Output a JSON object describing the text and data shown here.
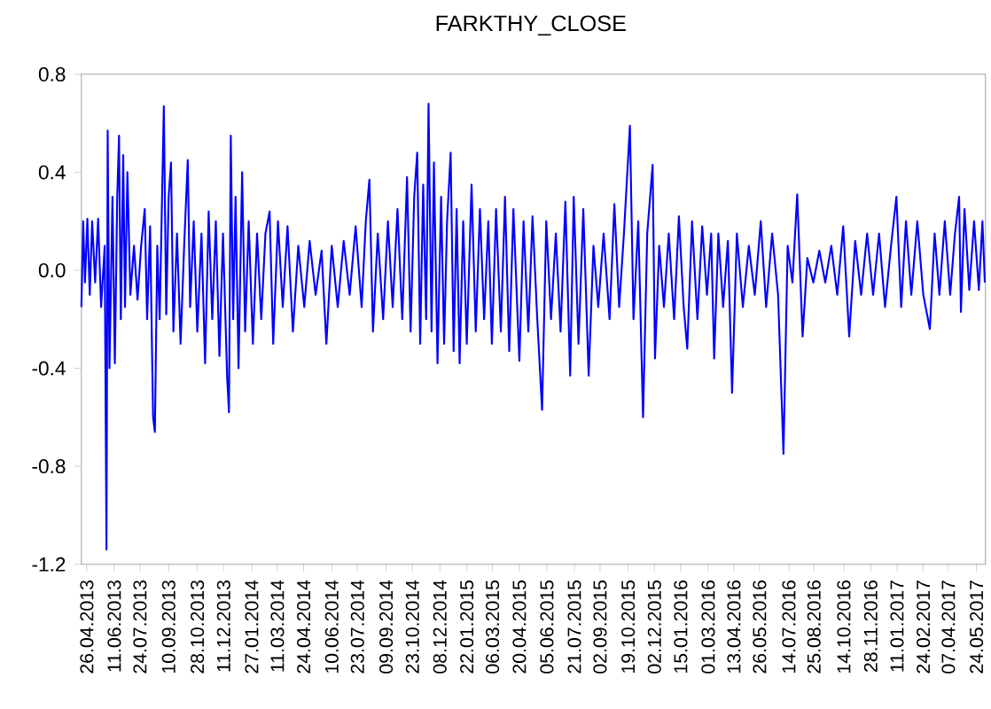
{
  "chart_data": {
    "type": "line",
    "title": "FARKTHY_CLOSE",
    "color": "#0000ff",
    "marker": "none",
    "line_style": "solid",
    "grid": false,
    "xlim": [
      "2013-04-17",
      "2017-06-08"
    ],
    "ylim": [
      -1.2,
      0.8
    ],
    "yticks": [
      -1.2,
      -0.8,
      -0.4,
      {
        "value": 0,
        "label": "0.0"
      },
      0.4,
      0.8
    ],
    "xticks": [
      {
        "value": "2013-04-26",
        "label": "26.04.2013"
      },
      {
        "value": "2013-06-11",
        "label": "11.06.2013"
      },
      {
        "value": "2013-07-24",
        "label": "24.07.2013"
      },
      {
        "value": "2013-09-10",
        "label": "10.09.2013"
      },
      {
        "value": "2013-10-28",
        "label": "28.10.2013"
      },
      {
        "value": "2013-12-11",
        "label": "11.12.2013"
      },
      {
        "value": "2014-01-27",
        "label": "27.01.2014"
      },
      {
        "value": "2014-03-11",
        "label": "11.03.2014"
      },
      {
        "value": "2014-04-24",
        "label": "24.04.2014"
      },
      {
        "value": "2014-06-10",
        "label": "10.06.2014"
      },
      {
        "value": "2014-07-23",
        "label": "23.07.2014"
      },
      {
        "value": "2014-09-09",
        "label": "09.09.2014"
      },
      {
        "value": "2014-10-23",
        "label": "23.10.2014"
      },
      {
        "value": "2014-12-08",
        "label": "08.12.2014"
      },
      {
        "value": "2015-01-22",
        "label": "22.01.2015"
      },
      {
        "value": "2015-03-06",
        "label": "06.03.2015"
      },
      {
        "value": "2015-04-20",
        "label": "20.04.2015"
      },
      {
        "value": "2015-06-05",
        "label": "05.06.2015"
      },
      {
        "value": "2015-07-21",
        "label": "21.07.2015"
      },
      {
        "value": "2015-09-02",
        "label": "02.09.2015"
      },
      {
        "value": "2015-10-19",
        "label": "19.10.2015"
      },
      {
        "value": "2015-12-02",
        "label": "02.12.2015"
      },
      {
        "value": "2016-01-15",
        "label": "15.01.2016"
      },
      {
        "value": "2016-03-01",
        "label": "01.03.2016"
      },
      {
        "value": "2016-04-13",
        "label": "13.04.2016"
      },
      {
        "value": "2016-05-26",
        "label": "26.05.2016"
      },
      {
        "value": "2016-07-14",
        "label": "14.07.2016"
      },
      {
        "value": "2016-08-25",
        "label": "25.08.2016"
      },
      {
        "value": "2016-10-14",
        "label": "14.10.2016"
      },
      {
        "value": "2016-11-28",
        "label": "28.11.2016"
      },
      {
        "value": "2017-01-11",
        "label": "11.01.2017"
      },
      {
        "value": "2017-02-24",
        "label": "24.02.2017"
      },
      {
        "value": "2017-04-07",
        "label": "07.04.2017"
      },
      {
        "value": "2017-05-24",
        "label": "24.05.2017"
      }
    ],
    "x": [
      "2013-04-17",
      "2013-04-20",
      "2013-04-23",
      "2013-04-27",
      "2013-05-01",
      "2013-05-05",
      "2013-05-10",
      "2013-05-15",
      "2013-05-20",
      "2013-05-26",
      "2013-05-29",
      "2013-05-31",
      "2013-06-03",
      "2013-06-08",
      "2013-06-12",
      "2013-06-16",
      "2013-06-19",
      "2013-06-22",
      "2013-06-26",
      "2013-06-29",
      "2013-07-03",
      "2013-07-08",
      "2013-07-14",
      "2013-07-20",
      "2013-07-26",
      "2013-08-01",
      "2013-08-05",
      "2013-08-10",
      "2013-08-15",
      "2013-08-18",
      "2013-08-22",
      "2013-08-26",
      "2013-09-02",
      "2013-09-06",
      "2013-09-10",
      "2013-09-14",
      "2013-09-18",
      "2013-09-24",
      "2013-09-30",
      "2013-10-06",
      "2013-10-12",
      "2013-10-16",
      "2013-10-22",
      "2013-10-28",
      "2013-11-04",
      "2013-11-10",
      "2013-11-16",
      "2013-11-22",
      "2013-11-28",
      "2013-12-04",
      "2013-12-10",
      "2013-12-17",
      "2013-12-20",
      "2013-12-23",
      "2013-12-27",
      "2013-12-31",
      "2014-01-05",
      "2014-01-11",
      "2014-01-16",
      "2014-01-22",
      "2014-01-29",
      "2014-02-05",
      "2014-02-12",
      "2014-02-19",
      "2014-02-26",
      "2014-03-04",
      "2014-03-12",
      "2014-03-20",
      "2014-03-28",
      "2014-04-06",
      "2014-04-15",
      "2014-04-25",
      "2014-05-04",
      "2014-05-14",
      "2014-05-24",
      "2014-06-01",
      "2014-06-10",
      "2014-06-20",
      "2014-06-30",
      "2014-07-10",
      "2014-07-20",
      "2014-07-30",
      "2014-08-06",
      "2014-08-12",
      "2014-08-18",
      "2014-08-26",
      "2014-09-04",
      "2014-09-12",
      "2014-09-20",
      "2014-09-28",
      "2014-10-06",
      "2014-10-14",
      "2014-10-20",
      "2014-10-26",
      "2014-10-31",
      "2014-11-05",
      "2014-11-10",
      "2014-11-15",
      "2014-11-19",
      "2014-11-24",
      "2014-11-28",
      "2014-12-04",
      "2014-12-10",
      "2014-12-15",
      "2014-12-20",
      "2014-12-26",
      "2014-12-31",
      "2015-01-05",
      "2015-01-10",
      "2015-01-16",
      "2015-01-22",
      "2015-01-30",
      "2015-02-06",
      "2015-02-13",
      "2015-02-20",
      "2015-02-27",
      "2015-03-05",
      "2015-03-12",
      "2015-03-20",
      "2015-03-27",
      "2015-04-03",
      "2015-04-10",
      "2015-04-20",
      "2015-04-27",
      "2015-05-05",
      "2015-05-12",
      "2015-05-20",
      "2015-05-28",
      "2015-06-04",
      "2015-06-12",
      "2015-06-20",
      "2015-06-28",
      "2015-07-06",
      "2015-07-14",
      "2015-07-20",
      "2015-07-28",
      "2015-08-05",
      "2015-08-14",
      "2015-08-22",
      "2015-08-30",
      "2015-09-08",
      "2015-09-18",
      "2015-09-26",
      "2015-10-04",
      "2015-10-12",
      "2015-10-22",
      "2015-10-28",
      "2015-11-05",
      "2015-11-13",
      "2015-11-20",
      "2015-11-29",
      "2015-12-03",
      "2015-12-10",
      "2015-12-18",
      "2015-12-26",
      "2016-01-04",
      "2016-01-12",
      "2016-01-20",
      "2016-01-26",
      "2016-02-03",
      "2016-02-12",
      "2016-02-20",
      "2016-02-28",
      "2016-03-06",
      "2016-03-11",
      "2016-03-18",
      "2016-03-26",
      "2016-04-03",
      "2016-04-10",
      "2016-04-18",
      "2016-04-28",
      "2016-05-08",
      "2016-05-18",
      "2016-05-28",
      "2016-06-06",
      "2016-06-16",
      "2016-06-26",
      "2016-07-05",
      "2016-07-12",
      "2016-07-20",
      "2016-07-28",
      "2016-08-06",
      "2016-08-14",
      "2016-08-24",
      "2016-09-03",
      "2016-09-13",
      "2016-09-23",
      "2016-10-03",
      "2016-10-13",
      "2016-10-23",
      "2016-11-02",
      "2016-11-12",
      "2016-11-22",
      "2016-12-02",
      "2016-12-12",
      "2016-12-22",
      "2017-01-01",
      "2017-01-10",
      "2017-01-18",
      "2017-01-26",
      "2017-02-04",
      "2017-02-14",
      "2017-02-24",
      "2017-03-07",
      "2017-03-15",
      "2017-03-23",
      "2017-04-01",
      "2017-04-10",
      "2017-04-18",
      "2017-04-25",
      "2017-04-28",
      "2017-05-04",
      "2017-05-12",
      "2017-05-20",
      "2017-05-28",
      "2017-06-03",
      "2017-06-07"
    ],
    "values": [
      -0.15,
      0.2,
      -0.05,
      0.21,
      -0.1,
      0.2,
      -0.05,
      0.21,
      -0.15,
      0.1,
      -1.14,
      0.57,
      -0.4,
      0.3,
      -0.38,
      0.3,
      0.55,
      -0.2,
      0.47,
      -0.15,
      0.4,
      -0.1,
      0.1,
      -0.12,
      0.1,
      0.25,
      -0.2,
      0.18,
      -0.6,
      -0.66,
      0.1,
      -0.2,
      0.67,
      -0.18,
      0.3,
      0.44,
      -0.25,
      0.15,
      -0.3,
      0.1,
      0.45,
      -0.15,
      0.2,
      -0.25,
      0.15,
      -0.38,
      0.24,
      -0.2,
      0.2,
      -0.35,
      0.15,
      -0.44,
      -0.58,
      0.55,
      -0.2,
      0.3,
      -0.4,
      0.4,
      -0.25,
      0.2,
      -0.3,
      0.15,
      -0.2,
      0.15,
      0.24,
      -0.3,
      0.2,
      -0.15,
      0.18,
      -0.25,
      0.1,
      -0.15,
      0.12,
      -0.1,
      0.08,
      -0.3,
      0.1,
      -0.15,
      0.12,
      -0.1,
      0.18,
      -0.15,
      0.2,
      0.37,
      -0.25,
      0.15,
      -0.2,
      0.2,
      -0.15,
      0.25,
      -0.2,
      0.38,
      -0.25,
      0.3,
      0.48,
      -0.3,
      0.35,
      -0.2,
      0.68,
      -0.25,
      0.44,
      -0.38,
      0.3,
      -0.3,
      0.2,
      0.48,
      -0.33,
      0.25,
      -0.38,
      0.2,
      -0.3,
      0.35,
      -0.25,
      0.25,
      -0.2,
      0.2,
      -0.3,
      0.25,
      -0.25,
      0.3,
      -0.33,
      0.25,
      -0.37,
      0.2,
      -0.25,
      0.22,
      -0.2,
      -0.57,
      0.2,
      -0.2,
      0.15,
      -0.25,
      0.28,
      -0.43,
      0.3,
      -0.3,
      0.25,
      -0.43,
      0.1,
      -0.15,
      0.15,
      -0.2,
      0.27,
      -0.15,
      0.15,
      0.59,
      -0.2,
      0.2,
      -0.6,
      0.15,
      0.43,
      -0.36,
      0.1,
      -0.15,
      0.15,
      -0.2,
      0.22,
      -0.15,
      -0.32,
      0.2,
      -0.2,
      0.18,
      -0.1,
      0.15,
      -0.36,
      0.15,
      -0.15,
      0.12,
      -0.5,
      0.15,
      -0.15,
      0.1,
      -0.1,
      0.2,
      -0.15,
      0.15,
      -0.1,
      -0.75,
      0.1,
      -0.05,
      0.31,
      -0.27,
      0.05,
      -0.05,
      0.08,
      -0.05,
      0.1,
      -0.1,
      0.18,
      -0.27,
      0.12,
      -0.1,
      0.15,
      -0.1,
      0.15,
      -0.15,
      0.1,
      0.3,
      -0.15,
      0.2,
      -0.1,
      0.2,
      -0.1,
      -0.24,
      0.15,
      -0.1,
      0.2,
      -0.1,
      0.15,
      0.3,
      -0.17,
      0.25,
      -0.08,
      0.2,
      -0.08,
      0.2,
      -0.05
    ]
  }
}
